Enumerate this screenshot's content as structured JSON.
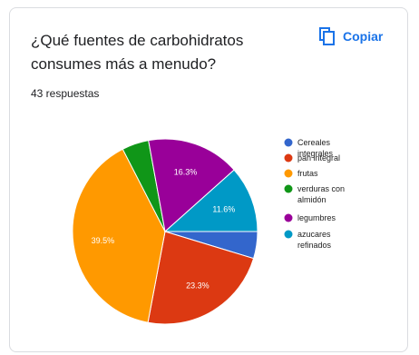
{
  "title": "¿Qué fuentes de carbohidratos consumes más a menudo?",
  "responses": "43 respuestas",
  "copy_label": "Copiar",
  "icons": {
    "copy": "copy-icon"
  },
  "chart_data": {
    "type": "pie",
    "slices": [
      {
        "label": "Cereales integrales",
        "value": 4.7,
        "display": "",
        "color": "#3366cc"
      },
      {
        "label": "pan integral",
        "value": 23.3,
        "display": "23.3%",
        "color": "#dc3912"
      },
      {
        "label": "frutas",
        "value": 39.5,
        "display": "39.5%",
        "color": "#ff9900"
      },
      {
        "label": "verduras con almidón",
        "value": 4.7,
        "display": "",
        "color": "#109618"
      },
      {
        "label": "legumbres",
        "value": 16.3,
        "display": "16.3%",
        "color": "#990099"
      },
      {
        "label": "azucares refinados",
        "value": 11.6,
        "display": "11.6%",
        "color": "#0099c6"
      }
    ],
    "legend_position": "right"
  }
}
